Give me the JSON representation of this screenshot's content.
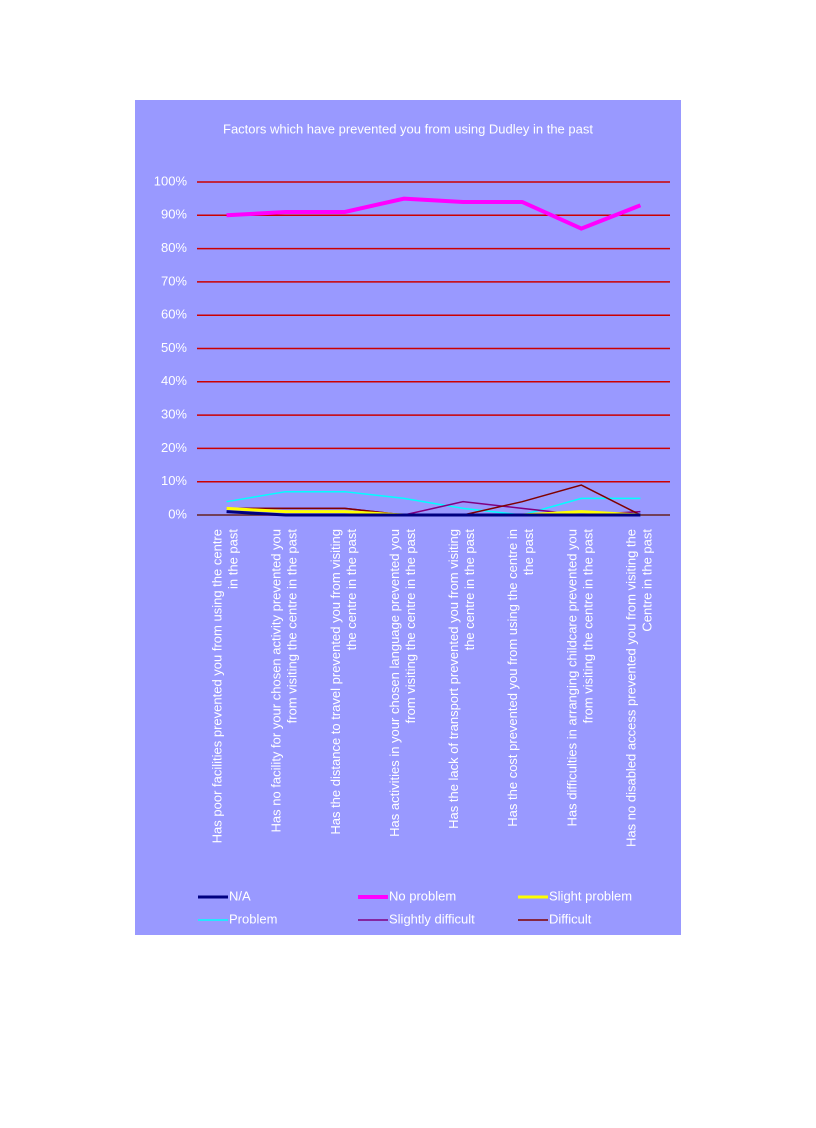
{
  "chart_data": {
    "type": "line",
    "title": "Factors which have prevented you from using Dudley in the past",
    "categories": [
      "Has poor facilities prevented you from using the centre in the past",
      "Has no facility for your chosen activity prevented you from visiting the centre in the past",
      "Has the distance to travel prevented you from visiting the centre in the past",
      "Has activities in your chosen language prevented you from visiting the centre in the past",
      "Has the lack of transport prevented you from visiting the centre in the past",
      "Has the cost prevented you from using the centre in the past",
      "Has difficulties in arranging childcare prevented you from visiting the centre in the past",
      "Has no disabled access prevented you from visiting the Centre in the past"
    ],
    "series": [
      {
        "name": "N/A",
        "color": "#000080",
        "values": [
          1,
          0,
          0,
          0,
          0,
          0,
          0,
          0
        ]
      },
      {
        "name": "No problem",
        "color": "#ff00ff",
        "values": [
          90,
          91,
          91,
          95,
          94,
          94,
          86,
          93
        ]
      },
      {
        "name": "Slight problem",
        "color": "#ffff00",
        "values": [
          2,
          1,
          1,
          0,
          0,
          0,
          1,
          0
        ]
      },
      {
        "name": "Problem",
        "color": "#00ffff",
        "values": [
          4,
          7,
          7,
          5,
          2,
          0,
          5,
          5
        ]
      },
      {
        "name": "Slightly difficult",
        "color": "#800080",
        "values": [
          2,
          2,
          2,
          0,
          4,
          2,
          0,
          1
        ]
      },
      {
        "name": "Difficult",
        "color": "#800000",
        "values": [
          2,
          2,
          2,
          0,
          0,
          4,
          9,
          0
        ]
      }
    ],
    "ylim": [
      0,
      100
    ],
    "yticks": [
      {
        "value": 0,
        "label": "0%"
      },
      {
        "value": 10,
        "label": "10%"
      },
      {
        "value": 20,
        "label": "20%"
      },
      {
        "value": 30,
        "label": "30%"
      },
      {
        "value": 40,
        "label": "40%"
      },
      {
        "value": 50,
        "label": "50%"
      },
      {
        "value": 60,
        "label": "60%"
      },
      {
        "value": 70,
        "label": "70%"
      },
      {
        "value": 80,
        "label": "80%"
      },
      {
        "value": 90,
        "label": "90%"
      },
      {
        "value": 100,
        "label": "100%"
      }
    ],
    "grid": true,
    "grid_color": "#cc0000",
    "background": "#9999ff"
  }
}
